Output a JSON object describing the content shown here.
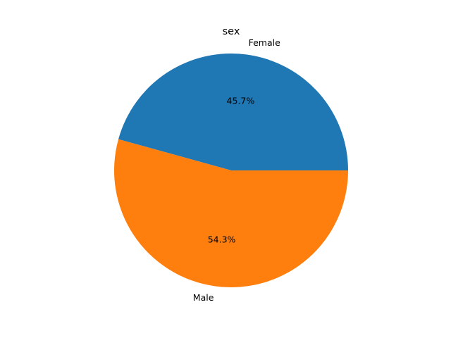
{
  "chart_data": {
    "type": "pie",
    "title": "sex",
    "slices": [
      {
        "label": "Female",
        "value": 45.7,
        "pct_label": "45.7%",
        "color": "#1f77b4"
      },
      {
        "label": "Male",
        "value": 54.3,
        "pct_label": "54.3%",
        "color": "#ff7f0e"
      }
    ],
    "start_angle_deg": 0,
    "direction": "counterclockwise"
  }
}
